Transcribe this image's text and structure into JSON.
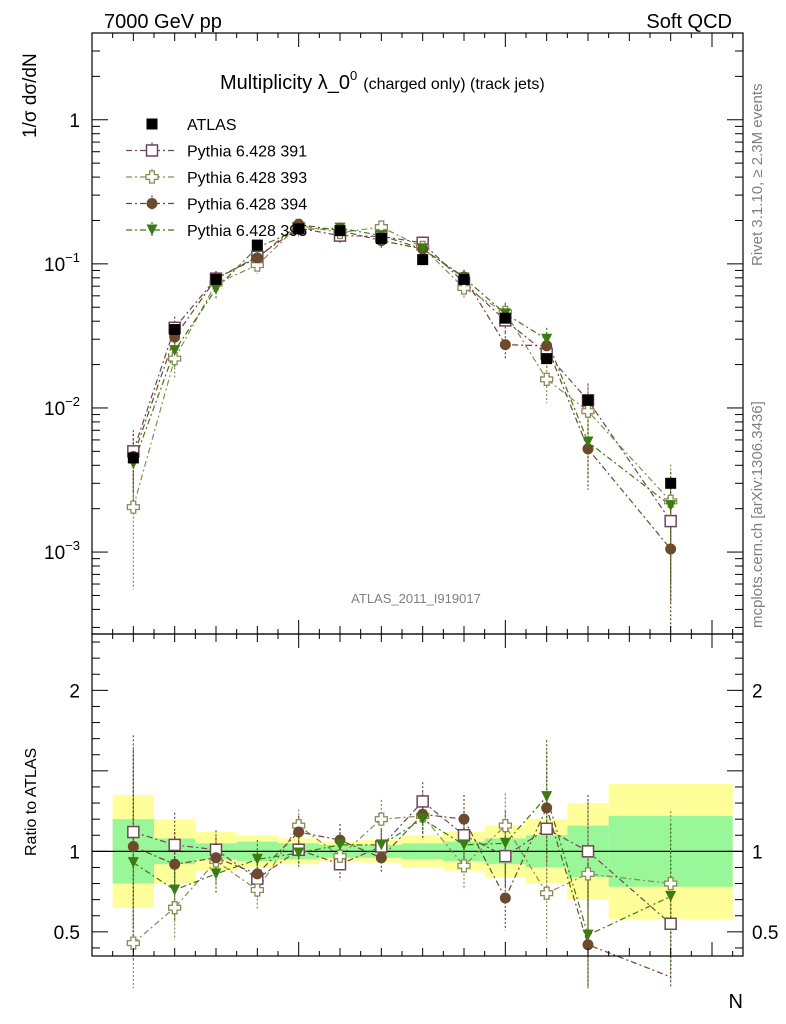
{
  "header": {
    "left": "7000 GeV pp",
    "right": "Soft QCD"
  },
  "side_labels": {
    "rivet": "Rivet 3.1.10, ≥ 2.3M events",
    "mcplots": "mcplots.cern.ch [arXiv:1306.3436]"
  },
  "chart_data": {
    "type": "scatter",
    "title_main": "Multiplicity λ_0",
    "title_sup": "0",
    "title_tail": "(charged only) (track jets)",
    "watermark": "ATLAS_2011_I919017",
    "xlabel": "N",
    "ylabel_top": "1/σ dσ/dN",
    "ylabel_bottom": "Ratio to ATLAS",
    "xlim": [
      0,
      15.75
    ],
    "ylim_top": [
      0.00027,
      4.0
    ],
    "ylog_top": true,
    "ylim_bottom": [
      0.35,
      2.35
    ],
    "x_ticks": [
      "0",
      "5",
      "10",
      "15"
    ],
    "y_ticks_top": [
      {
        "base": "10",
        "exp": "−3",
        "value": 0.001
      },
      {
        "base": "10",
        "exp": "−2",
        "value": 0.01
      },
      {
        "base": "10",
        "exp": "−1",
        "value": 0.1
      },
      {
        "base": "1",
        "exp": "",
        "value": 1
      }
    ],
    "y_ticks_bottom": [
      "0.5",
      "1",
      "2"
    ],
    "legend_placement": "top-left",
    "x": [
      1,
      2,
      3,
      4,
      5,
      6,
      7,
      8,
      9,
      10,
      11,
      12,
      14
    ],
    "bin_edges": [
      0.5,
      1.5,
      2.5,
      3.5,
      4.5,
      5.5,
      6.5,
      7.5,
      8.5,
      9.5,
      10.5,
      11.5,
      12.5,
      15.5
    ],
    "data": {
      "name": "ATLAS",
      "color": "#000000",
      "marker": "square-filled",
      "values": [
        0.0045,
        0.035,
        0.078,
        0.135,
        0.175,
        0.17,
        0.15,
        0.107,
        0.078,
        0.042,
        0.022,
        0.0113,
        0.003
      ],
      "band_inner": [
        0.2,
        0.08,
        0.05,
        0.06,
        0.05,
        0.04,
        0.04,
        0.05,
        0.06,
        0.08,
        0.1,
        0.16,
        0.22
      ],
      "band_outer": [
        0.35,
        0.2,
        0.12,
        0.1,
        0.08,
        0.06,
        0.07,
        0.1,
        0.12,
        0.16,
        0.2,
        0.3,
        0.42
      ]
    },
    "series": [
      {
        "name": "Pythia 6.428 391",
        "color": "#6e4658",
        "marker": "square-open",
        "values": [
          0.005,
          0.036,
          0.079,
          0.112,
          0.177,
          0.157,
          0.155,
          0.14,
          0.074,
          0.0405,
          0.0238,
          0.0113,
          0.00164
        ],
        "errors": [
          0.002,
          0.007,
          0.01,
          0.015,
          0.018,
          0.017,
          0.016,
          0.015,
          0.01,
          0.007,
          0.005,
          0.0035,
          0.0012
        ],
        "ratio": [
          1.12,
          1.04,
          1.01,
          0.83,
          1.01,
          0.92,
          1.03,
          1.31,
          1.1,
          0.97,
          1.14,
          1.0,
          0.55
        ],
        "ratio_err": [
          0.6,
          0.2,
          0.12,
          0.12,
          0.1,
          0.1,
          0.1,
          0.12,
          0.15,
          0.2,
          0.35,
          0.35,
          0.35
        ]
      },
      {
        "name": "Pythia 6.428 393",
        "color": "#8c8a56",
        "marker": "cross-open",
        "values": [
          0.00205,
          0.022,
          0.073,
          0.098,
          0.185,
          0.165,
          0.18,
          0.13,
          0.068,
          0.046,
          0.0158,
          0.0095,
          0.00225
        ],
        "errors": [
          0.0015,
          0.006,
          0.01,
          0.013,
          0.018,
          0.017,
          0.018,
          0.015,
          0.01,
          0.008,
          0.005,
          0.005,
          0.0018
        ],
        "ratio": [
          0.43,
          0.65,
          0.94,
          0.76,
          1.16,
          0.97,
          1.2,
          1.22,
          0.91,
          1.16,
          0.74,
          0.86,
          0.8
        ],
        "ratio_err": [
          0.3,
          0.2,
          0.15,
          0.12,
          0.1,
          0.1,
          0.12,
          0.15,
          0.15,
          0.2,
          0.3,
          0.45,
          0.45
        ]
      },
      {
        "name": "Pythia 6.428 394",
        "color": "#6b4a2e",
        "marker": "circle-filled",
        "values": [
          0.0046,
          0.031,
          0.079,
          0.11,
          0.188,
          0.17,
          0.145,
          0.127,
          0.081,
          0.0275,
          0.027,
          0.0052,
          0.00105
        ],
        "errors": [
          0.002,
          0.006,
          0.01,
          0.014,
          0.018,
          0.017,
          0.016,
          0.015,
          0.01,
          0.006,
          0.006,
          0.0025,
          0.0009
        ],
        "ratio": [
          1.03,
          0.92,
          0.96,
          0.86,
          1.12,
          1.07,
          0.96,
          1.23,
          1.2,
          0.71,
          1.27,
          0.42,
          0.22
        ],
        "ratio_err": [
          0.6,
          0.2,
          0.12,
          0.12,
          0.1,
          0.1,
          0.1,
          0.12,
          0.15,
          0.2,
          0.35,
          0.5,
          0.5
        ]
      },
      {
        "name": "Pythia 6.428 395",
        "color": "#3d7a12",
        "marker": "triangle-down-filled",
        "values": [
          0.0041,
          0.025,
          0.067,
          0.13,
          0.173,
          0.177,
          0.157,
          0.127,
          0.08,
          0.045,
          0.03,
          0.0058,
          0.0021
        ],
        "errors": [
          0.002,
          0.006,
          0.01,
          0.015,
          0.018,
          0.017,
          0.016,
          0.015,
          0.01,
          0.008,
          0.006,
          0.0025,
          0.0015
        ],
        "ratio": [
          0.93,
          0.76,
          0.86,
          0.95,
          0.99,
          1.04,
          1.04,
          1.2,
          1.04,
          1.05,
          1.34,
          0.48,
          0.72
        ],
        "ratio_err": [
          0.6,
          0.2,
          0.12,
          0.12,
          0.1,
          0.1,
          0.1,
          0.12,
          0.15,
          0.2,
          0.35,
          0.45,
          0.45
        ]
      }
    ],
    "band_colors": {
      "inner": "#99f799",
      "outer": "#ffff99"
    }
  }
}
